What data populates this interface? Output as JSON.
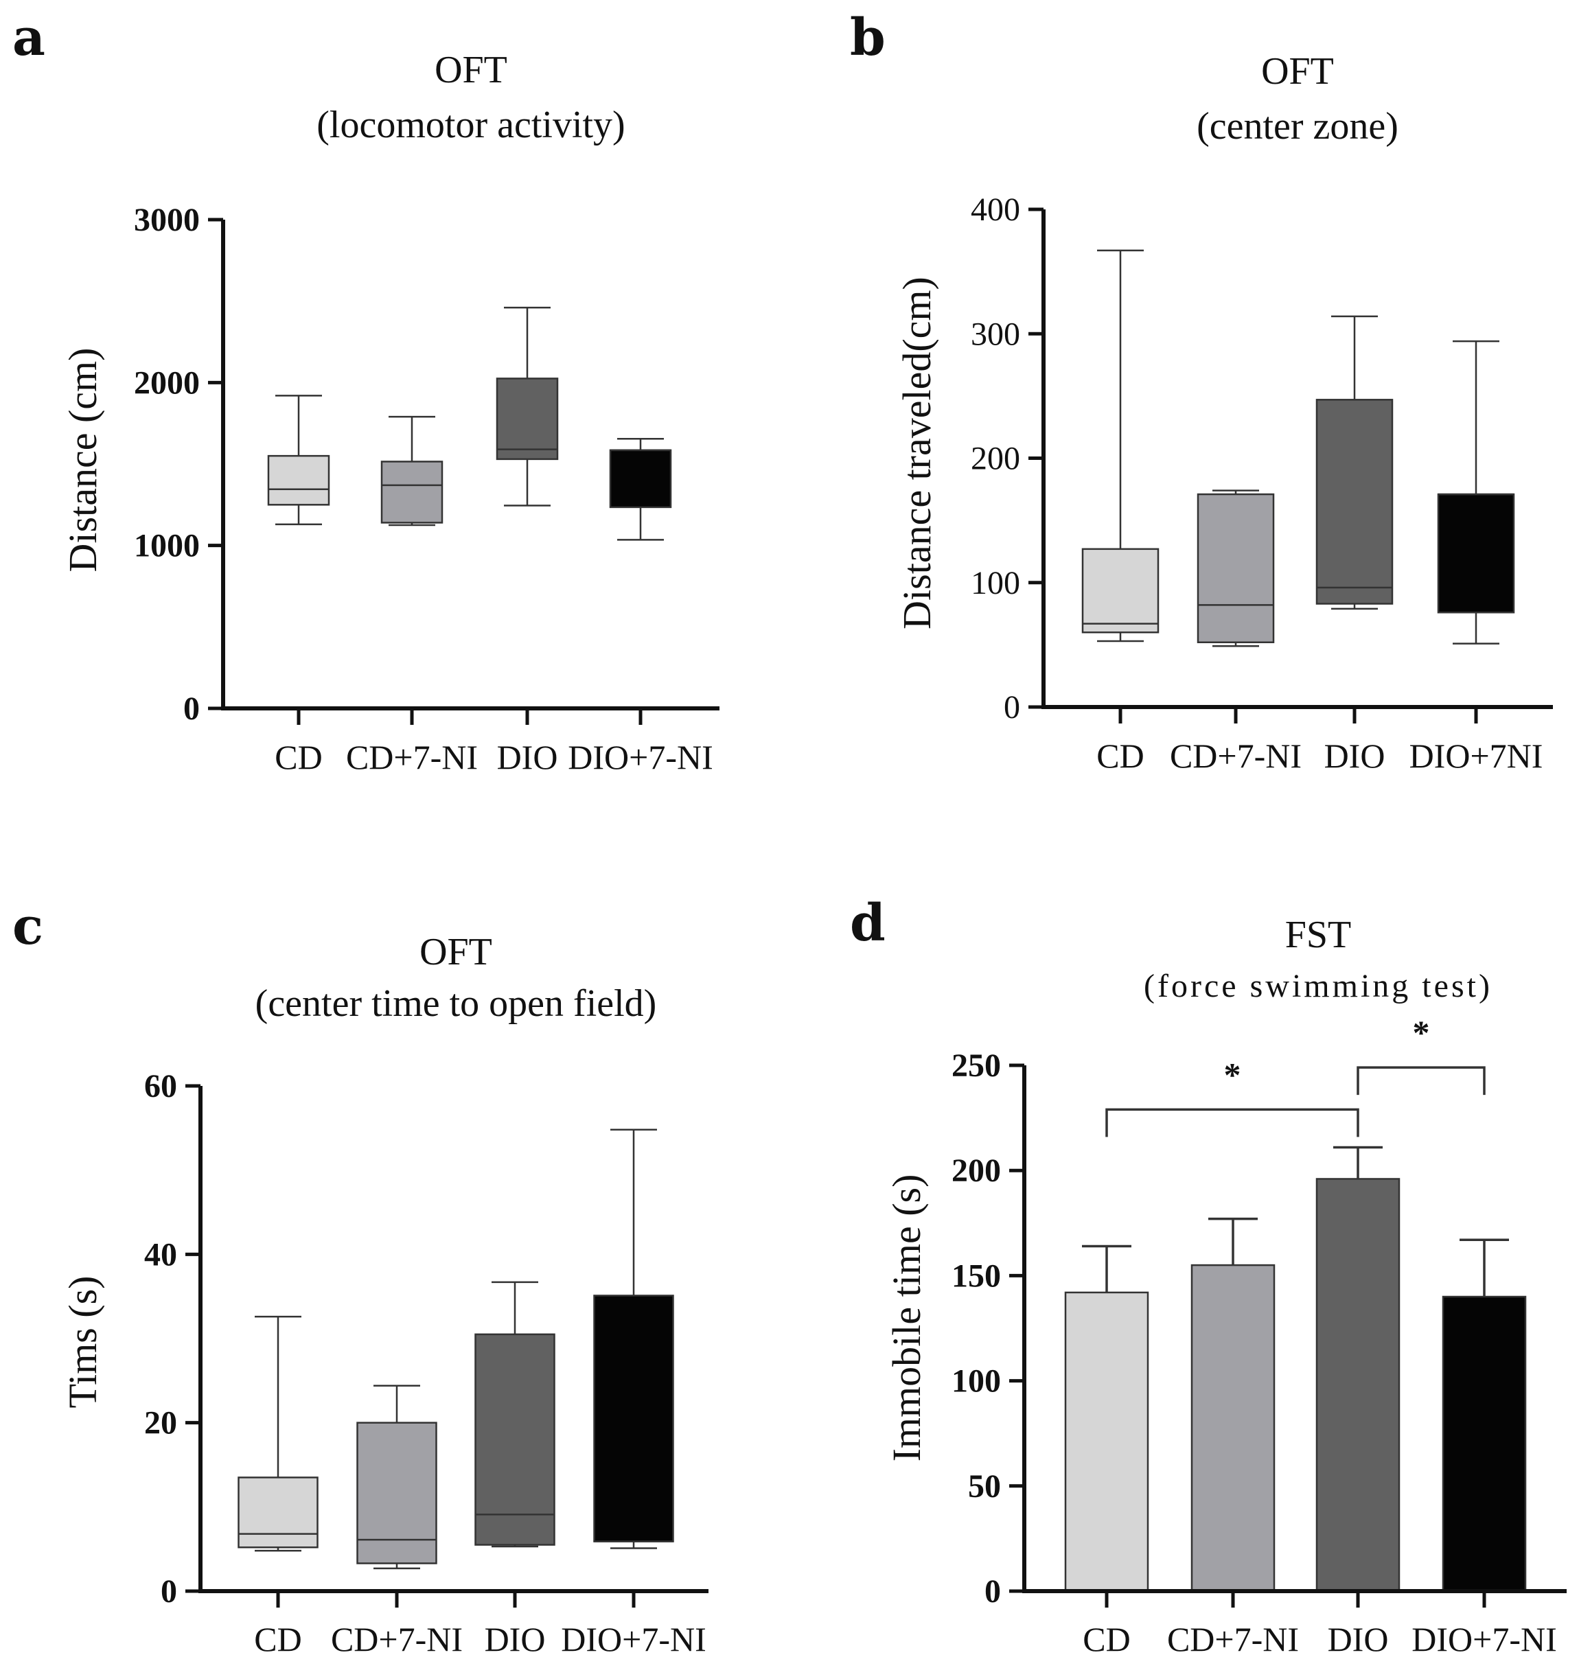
{
  "chart_data": [
    {
      "panel": "a",
      "type": "box",
      "title_line1": "OFT",
      "title_line2": "(locomotor activity)",
      "ylabel": "Distance (cm)",
      "ylim": [
        0,
        3000
      ],
      "yticks": [
        "0",
        "1000",
        "2000",
        "3000"
      ],
      "ytick_values": [
        0,
        1000,
        2000,
        3000
      ],
      "tick_bold": true,
      "categories": [
        "CD",
        "CD+7-NI",
        "DIO",
        "DIO+7-NI"
      ],
      "colors": [
        "#d6d6d6",
        "#a1a1a6",
        "#616161",
        "#050505"
      ],
      "boxes": [
        {
          "min": 1130,
          "q1": 1250,
          "median": 1345,
          "q3": 1550,
          "max": 1920
        },
        {
          "min": 1125,
          "q1": 1140,
          "median": 1370,
          "q3": 1515,
          "max": 1790
        },
        {
          "min": 1245,
          "q1": 1530,
          "median": 1590,
          "q3": 2025,
          "max": 2460
        },
        {
          "min": 1035,
          "q1": 1235,
          "median": 1585,
          "q3": 1585,
          "max": 1655
        }
      ]
    },
    {
      "panel": "b",
      "type": "box",
      "title_line1": "OFT",
      "title_line2": "(center zone)",
      "ylabel": "Distance traveled(cm)",
      "ylim": [
        0,
        400
      ],
      "yticks": [
        "0",
        "100",
        "200",
        "300",
        "400"
      ],
      "ytick_values": [
        0,
        100,
        200,
        300,
        400
      ],
      "tick_bold": false,
      "categories": [
        "CD",
        "CD+7-NI",
        "DIO",
        "DIO+7NI"
      ],
      "colors": [
        "#d6d6d6",
        "#a1a1a6",
        "#616161",
        "#050505"
      ],
      "boxes": [
        {
          "min": 53,
          "q1": 60,
          "median": 67,
          "q3": 127,
          "max": 367
        },
        {
          "min": 49,
          "q1": 52,
          "median": 82,
          "q3": 171,
          "max": 174
        },
        {
          "min": 79,
          "q1": 83,
          "median": 96,
          "q3": 247,
          "max": 314
        },
        {
          "min": 51,
          "q1": 76,
          "median": 171,
          "q3": 171,
          "max": 294
        }
      ]
    },
    {
      "panel": "c",
      "type": "box",
      "title_line1": "OFT",
      "title_line2": "(center time to open field)",
      "ylabel": "Tims (s)",
      "ylim": [
        0,
        60
      ],
      "yticks": [
        "0",
        "20",
        "40",
        "60"
      ],
      "ytick_values": [
        0,
        20,
        40,
        60
      ],
      "tick_bold": true,
      "categories": [
        "CD",
        "CD+7-NI",
        "DIO",
        "DIO+7-NI"
      ],
      "colors": [
        "#d6d6d6",
        "#a1a1a6",
        "#616161",
        "#050505"
      ],
      "boxes": [
        {
          "min": 4.8,
          "q1": 5.2,
          "median": 6.8,
          "q3": 13.5,
          "max": 32.6
        },
        {
          "min": 2.7,
          "q1": 3.3,
          "median": 6.1,
          "q3": 20.0,
          "max": 24.4
        },
        {
          "min": 5.3,
          "q1": 5.5,
          "median": 9.1,
          "q3": 30.5,
          "max": 36.7
        },
        {
          "min": 5.1,
          "q1": 5.9,
          "median": 5.9,
          "q3": 35.1,
          "max": 54.8
        }
      ]
    },
    {
      "panel": "d",
      "type": "bar",
      "title_line1": "FST",
      "title_line2": "(force swimming  test)",
      "ylabel": "Immobile time (s)",
      "ylim": [
        0,
        250
      ],
      "yticks": [
        "0",
        "50",
        "100",
        "150",
        "200",
        "250"
      ],
      "ytick_values": [
        0,
        50,
        100,
        150,
        200,
        250
      ],
      "tick_bold": true,
      "categories": [
        "CD",
        "CD+7-NI",
        "DIO",
        "DIO+7-NI"
      ],
      "colors": [
        "#d6d6d6",
        "#a1a1a6",
        "#616161",
        "#050505"
      ],
      "values": [
        142,
        155,
        196,
        140
      ],
      "errors": [
        22,
        22,
        15,
        27
      ],
      "significance": [
        {
          "from": 0,
          "to": 2,
          "label": "*",
          "level": 229
        },
        {
          "from": 2,
          "to": 3,
          "label": "*",
          "level": 249
        }
      ]
    }
  ]
}
